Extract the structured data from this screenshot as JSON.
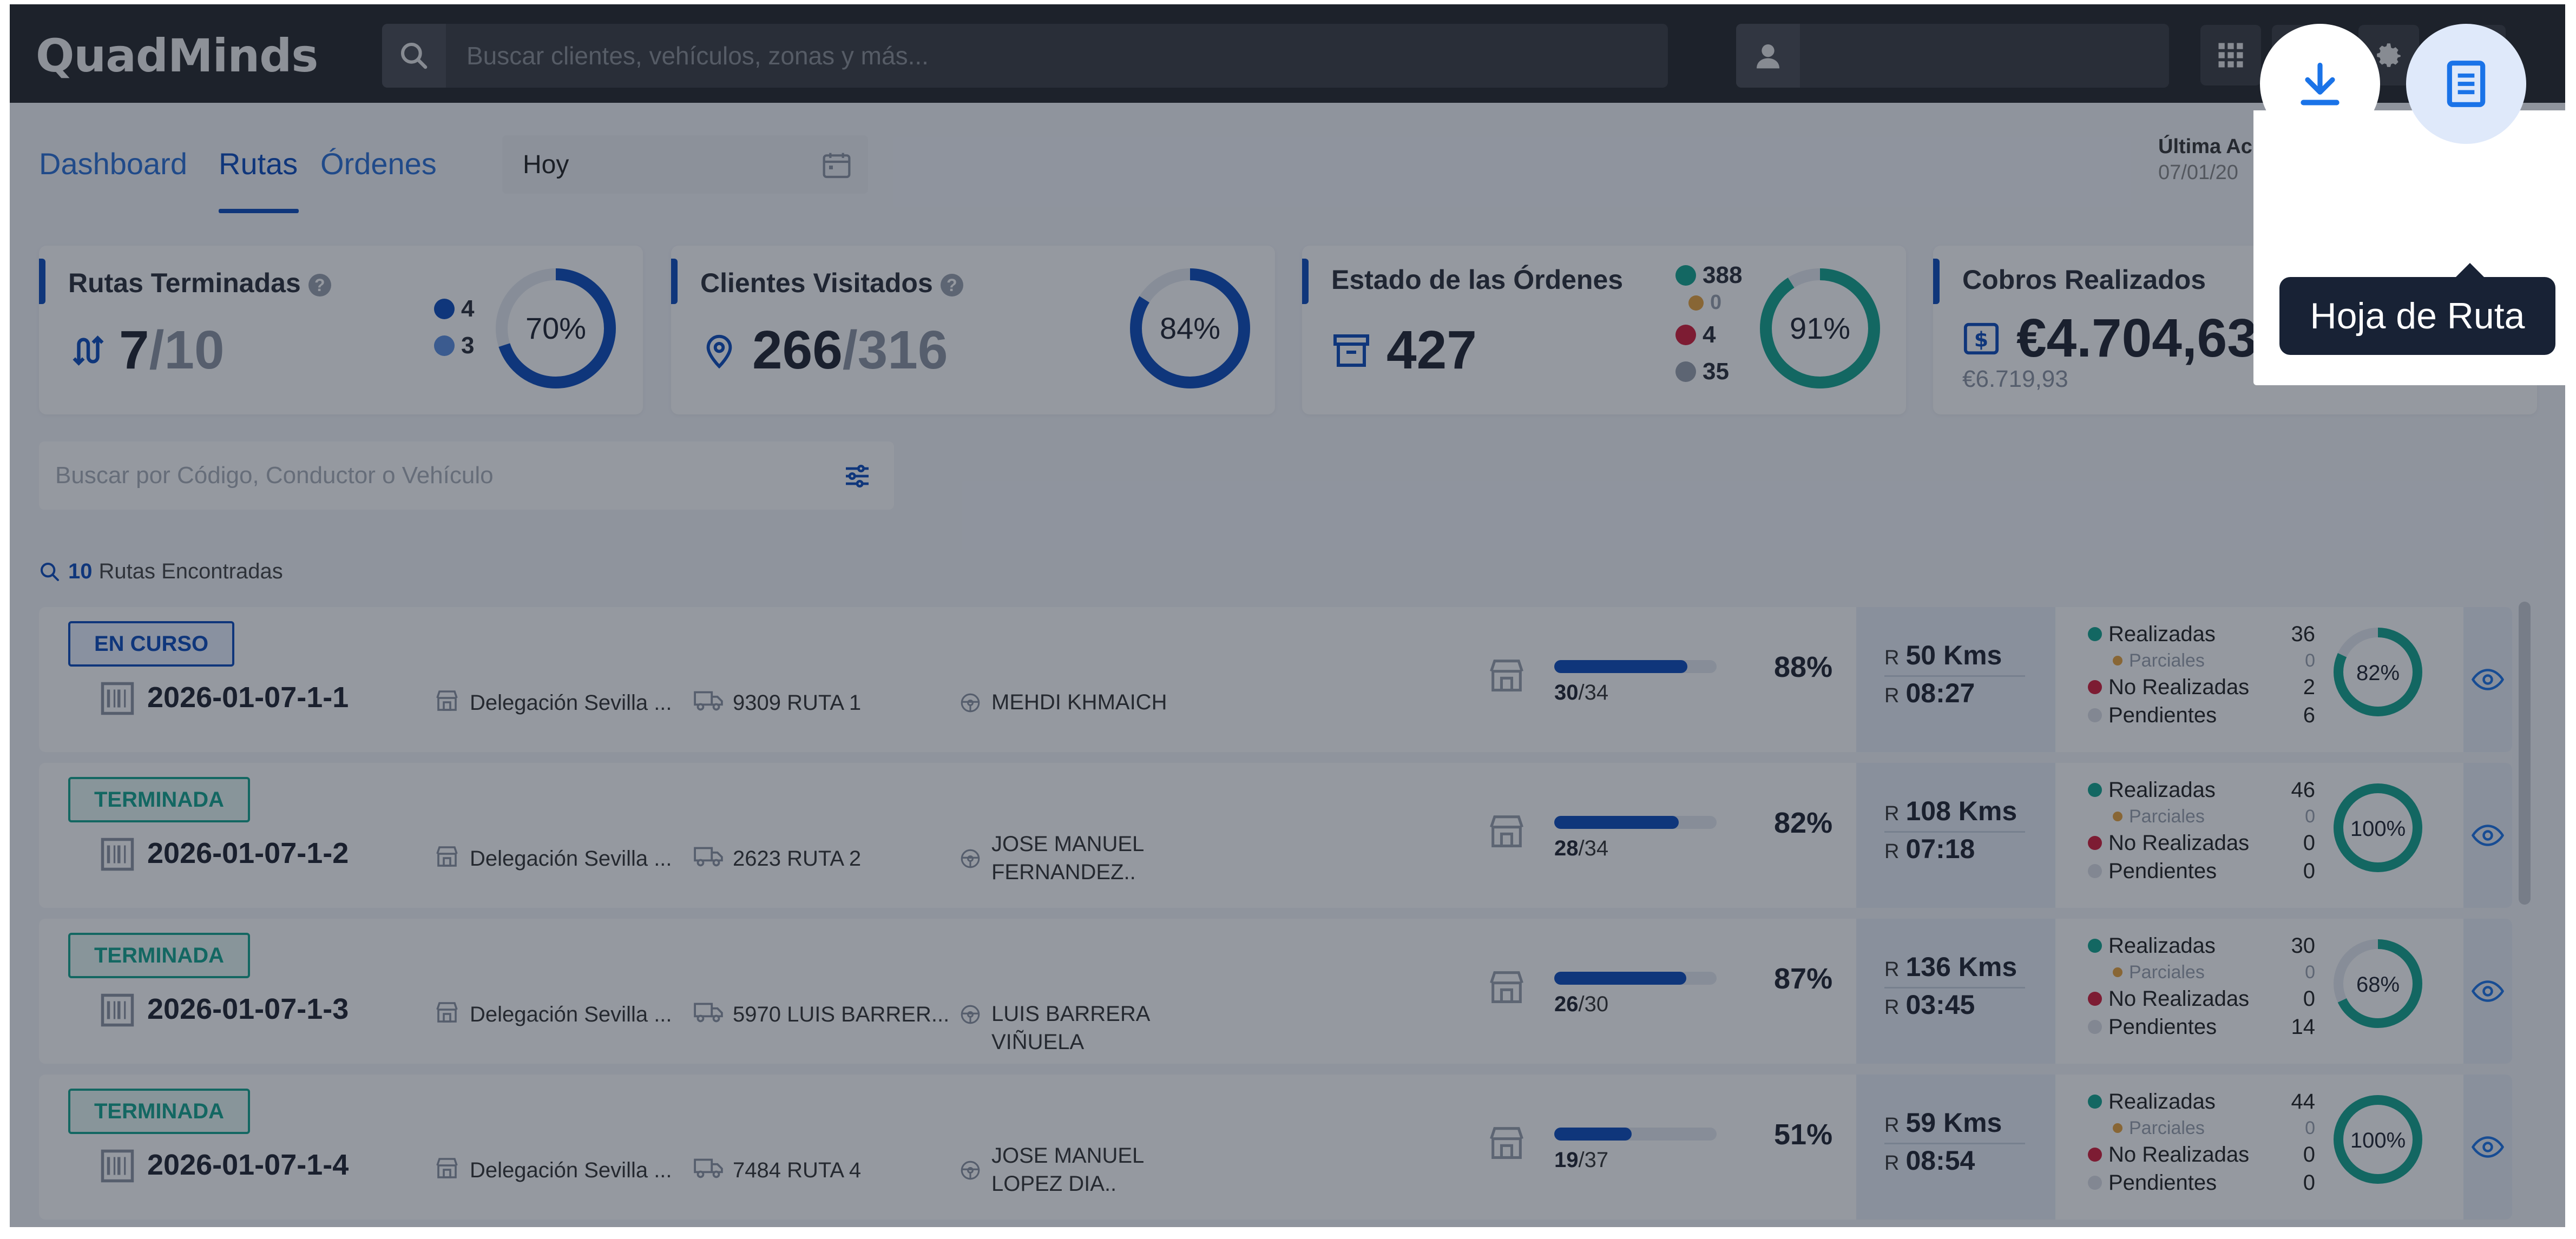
{
  "app": {
    "logo": "QuadMinds"
  },
  "search": {
    "placeholder": "Buscar clientes, vehículos, zonas y más..."
  },
  "tabs": [
    {
      "label": "Dashboard"
    },
    {
      "label": "Rutas"
    },
    {
      "label": "Órdenes"
    }
  ],
  "date_filter": {
    "value": "Hoy"
  },
  "last_update": {
    "label": "Última Ac",
    "value": "07/01/20"
  },
  "kpis": {
    "rutas": {
      "title": "Rutas Terminadas",
      "value": "7",
      "total": "/10",
      "legend_a": "4",
      "legend_b": "3",
      "pct": "70%",
      "pct_value": 70
    },
    "clientes": {
      "title": "Clientes Visitados",
      "value": "266",
      "total": "/316",
      "pct": "84%",
      "pct_value": 84
    },
    "ordenes": {
      "title": "Estado de las Órdenes",
      "value": "427",
      "legend": [
        "388",
        "0",
        "4",
        "35"
      ],
      "pct": "91%",
      "pct_value": 91
    },
    "cobros": {
      "title": "Cobros Realizados",
      "value": "€4.704,63",
      "sub": "€6.719,93"
    }
  },
  "route_search": {
    "placeholder": "Buscar por Código, Conductor o Vehículo"
  },
  "found": {
    "count": "10",
    "label": "Rutas Encontradas"
  },
  "routes": [
    {
      "status": "EN CURSO",
      "code": "2026-01-07-1-1",
      "delegation": "Delegación Sevilla ...",
      "vehicle": "9309 RUTA 1",
      "driver": "MEHDI KHMAICH",
      "done": "30",
      "total": "/34",
      "pct": "88%",
      "progress": 0.88,
      "km": "50 Kms",
      "time": "08:27",
      "realizadas": "36",
      "parciales": "0",
      "no_realizadas": "2",
      "pendientes": "6",
      "ring_pct": "82%",
      "ring_value": 82
    },
    {
      "status": "TERMINADA",
      "code": "2026-01-07-1-2",
      "delegation": "Delegación Sevilla ...",
      "vehicle": "2623 RUTA 2",
      "driver": "JOSE MANUEL FERNANDEZ..",
      "done": "28",
      "total": "/34",
      "pct": "82%",
      "progress": 0.82,
      "km": "108 Kms",
      "time": "07:18",
      "realizadas": "46",
      "parciales": "0",
      "no_realizadas": "0",
      "pendientes": "0",
      "ring_pct": "100%",
      "ring_value": 100
    },
    {
      "status": "TERMINADA",
      "code": "2026-01-07-1-3",
      "delegation": "Delegación Sevilla ...",
      "vehicle": "5970 LUIS BARRER...",
      "driver": "LUIS BARRERA VIÑUELA",
      "done": "26",
      "total": "/30",
      "pct": "87%",
      "progress": 0.87,
      "km": "136 Kms",
      "time": "03:45",
      "realizadas": "30",
      "parciales": "0",
      "no_realizadas": "0",
      "pendientes": "14",
      "ring_pct": "68%",
      "ring_value": 68
    },
    {
      "status": "TERMINADA",
      "code": "2026-01-07-1-4",
      "delegation": "Delegación Sevilla ...",
      "vehicle": "7484 RUTA 4",
      "driver": "JOSE MANUEL LOPEZ DIA..",
      "done": "19",
      "total": "/37",
      "pct": "51%",
      "progress": 0.51,
      "km": "59 Kms",
      "time": "08:54",
      "realizadas": "44",
      "parciales": "0",
      "no_realizadas": "0",
      "pendientes": "0",
      "ring_pct": "100%",
      "ring_value": 100
    }
  ],
  "stat_labels": {
    "realizadas": "Realizadas",
    "parciales": "Parciales",
    "no_realizadas": "No Realizadas",
    "pendientes": "Pendientes",
    "r": "R"
  },
  "popover": {
    "tooltip": "Hoja de Ruta"
  },
  "colors": {
    "primary": "#0c4cbc",
    "success": "#13a58f",
    "danger": "#d41c3a",
    "warning": "#e8a33d",
    "muted": "#9aa1ad",
    "light_blue": "#5b8fe0"
  }
}
